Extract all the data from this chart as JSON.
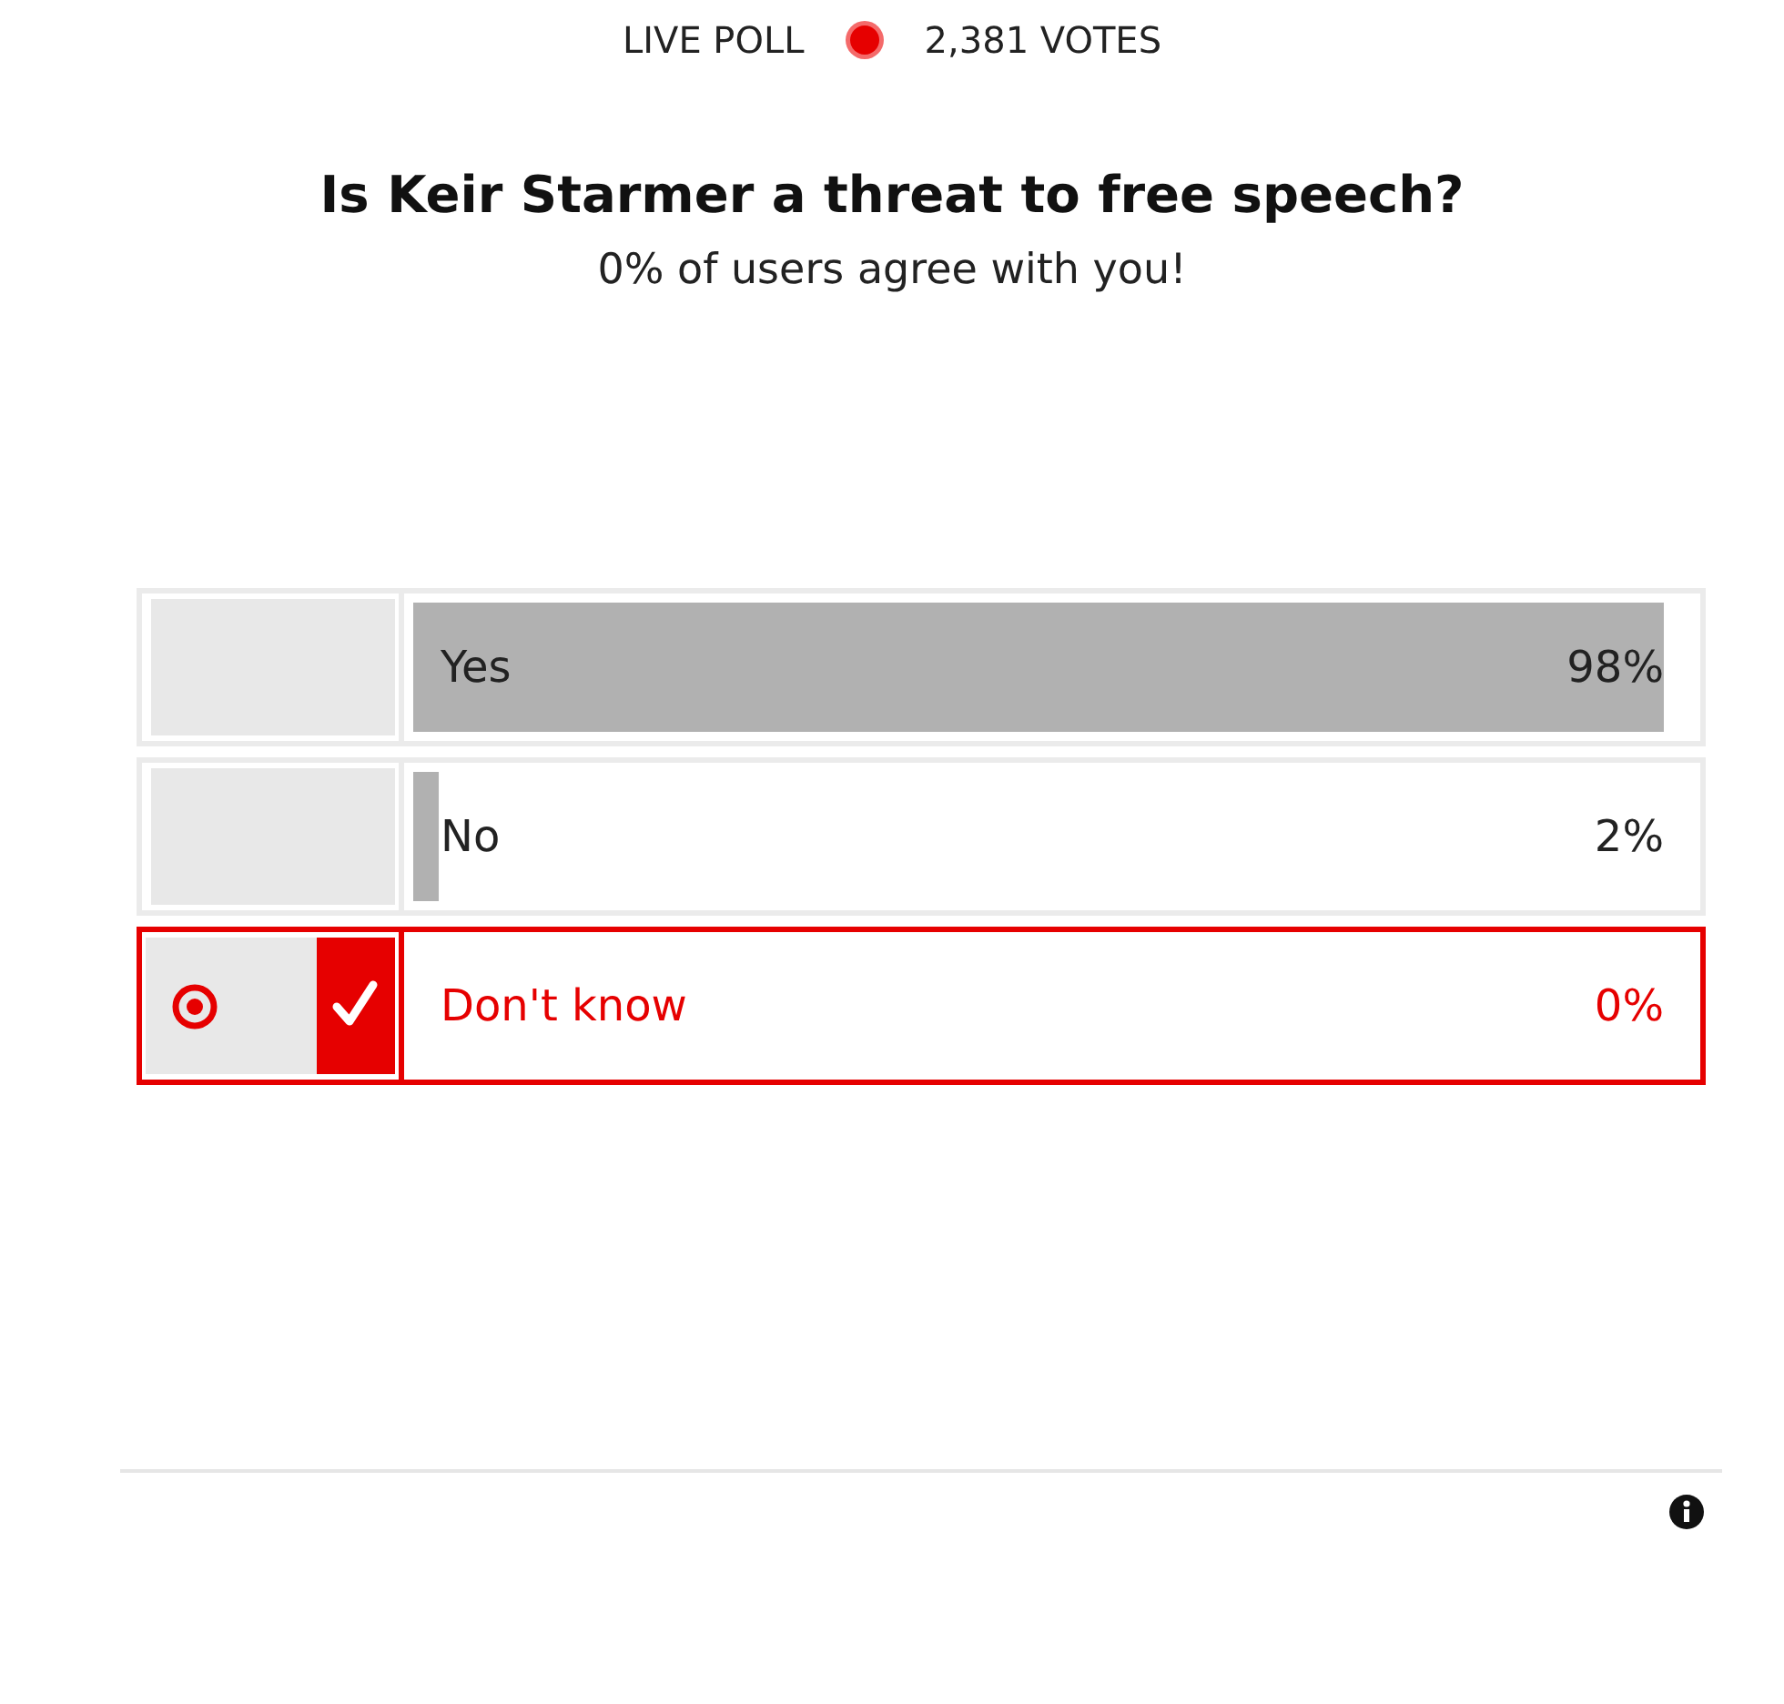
{
  "chart_data": {
    "type": "bar",
    "orientation": "horizontal",
    "title": "Is Keir Starmer a threat to free speech?",
    "subtitle": "0% of users agree with you!",
    "annotations": [
      "LIVE POLL",
      "2,381 VOTES"
    ],
    "categories": [
      "Yes",
      "No",
      "Don't know"
    ],
    "values": [
      98,
      2,
      0
    ],
    "colors": [
      "#b1b1b1",
      "#b1b1b1",
      "#e60000"
    ],
    "value_labels": [
      "98%",
      "2%",
      "0%"
    ],
    "tick_labels": "y"
  }
}
